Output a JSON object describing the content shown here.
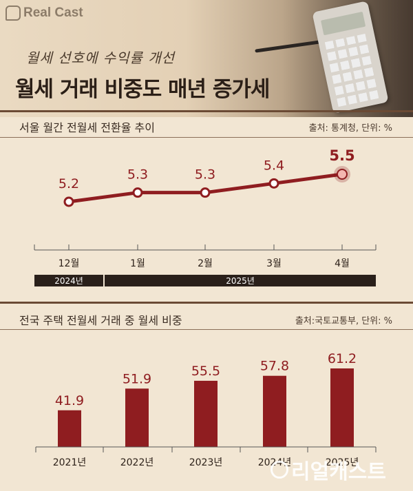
{
  "brand": {
    "logo_text": "Real Cast",
    "watermark_text": "리얼캐스트"
  },
  "header": {
    "subtitle": "월세 선호에 수익률 개선",
    "title": "월세 거래 비중도 매년 증가세"
  },
  "colors": {
    "accent": "#8f1d20",
    "bar": "#8f1d20",
    "dark_band": "#2a201a",
    "background": "#f2e6d3"
  },
  "chart_data": [
    {
      "type": "line",
      "title": "서울 월간 전월세 전환율 추이",
      "source": "출처: 통계청, 단위: %",
      "categories": [
        "12월",
        "1월",
        "2월",
        "3월",
        "4월"
      ],
      "year_groups": [
        {
          "label": "2024년",
          "categories": [
            "12월"
          ]
        },
        {
          "label": "2025년",
          "categories": [
            "1월",
            "2월",
            "3월",
            "4월"
          ]
        }
      ],
      "values": [
        5.2,
        5.3,
        5.3,
        5.4,
        5.5
      ],
      "data_labels": [
        "5.2",
        "5.3",
        "5.3",
        "5.4",
        "5.5"
      ],
      "highlight_index": 4,
      "ylim": [
        5.0,
        5.6
      ]
    },
    {
      "type": "bar",
      "title": "전국 주택 전월세 거래 중 월세 비중",
      "source": "출처:국토교통부, 단위: %",
      "categories": [
        "2021년",
        "2022년",
        "2023년",
        "2024년",
        "2025년"
      ],
      "values": [
        41.9,
        51.9,
        55.5,
        57.8,
        61.2
      ],
      "data_labels": [
        "41.9",
        "51.9",
        "55.5",
        "57.8",
        "61.2"
      ],
      "ylim": [
        25,
        65
      ]
    }
  ]
}
